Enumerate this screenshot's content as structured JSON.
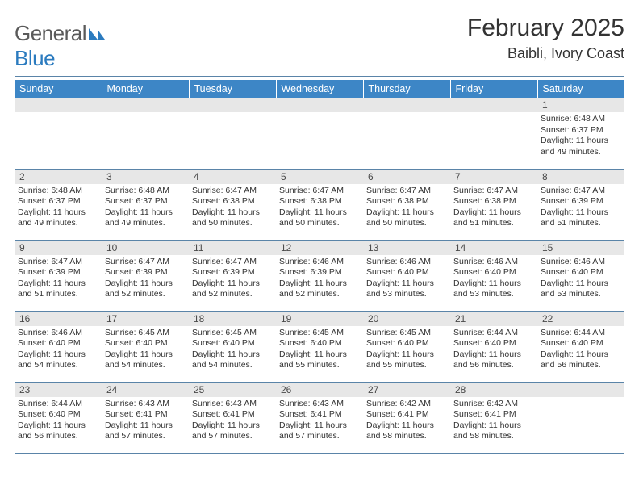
{
  "logo": {
    "prefix": "General",
    "suffix": "Blue"
  },
  "title": "February 2025",
  "location": "Baibli, Ivory Coast",
  "colors": {
    "header_bg": "#3d86c6",
    "header_fg": "#ffffff",
    "daynum_bg": "#e7e7e7",
    "daynum_fg": "#4a4a4a",
    "rule": "#5a84a8",
    "text": "#333333",
    "logo_gray": "#5a5a5a",
    "logo_blue": "#2b7bbf"
  },
  "day_names": [
    "Sunday",
    "Monday",
    "Tuesday",
    "Wednesday",
    "Thursday",
    "Friday",
    "Saturday"
  ],
  "weeks": [
    [
      null,
      null,
      null,
      null,
      null,
      null,
      {
        "n": "1",
        "sr": "Sunrise: 6:48 AM",
        "ss": "Sunset: 6:37 PM",
        "dl": "Daylight: 11 hours and 49 minutes."
      }
    ],
    [
      {
        "n": "2",
        "sr": "Sunrise: 6:48 AM",
        "ss": "Sunset: 6:37 PM",
        "dl": "Daylight: 11 hours and 49 minutes."
      },
      {
        "n": "3",
        "sr": "Sunrise: 6:48 AM",
        "ss": "Sunset: 6:37 PM",
        "dl": "Daylight: 11 hours and 49 minutes."
      },
      {
        "n": "4",
        "sr": "Sunrise: 6:47 AM",
        "ss": "Sunset: 6:38 PM",
        "dl": "Daylight: 11 hours and 50 minutes."
      },
      {
        "n": "5",
        "sr": "Sunrise: 6:47 AM",
        "ss": "Sunset: 6:38 PM",
        "dl": "Daylight: 11 hours and 50 minutes."
      },
      {
        "n": "6",
        "sr": "Sunrise: 6:47 AM",
        "ss": "Sunset: 6:38 PM",
        "dl": "Daylight: 11 hours and 50 minutes."
      },
      {
        "n": "7",
        "sr": "Sunrise: 6:47 AM",
        "ss": "Sunset: 6:38 PM",
        "dl": "Daylight: 11 hours and 51 minutes."
      },
      {
        "n": "8",
        "sr": "Sunrise: 6:47 AM",
        "ss": "Sunset: 6:39 PM",
        "dl": "Daylight: 11 hours and 51 minutes."
      }
    ],
    [
      {
        "n": "9",
        "sr": "Sunrise: 6:47 AM",
        "ss": "Sunset: 6:39 PM",
        "dl": "Daylight: 11 hours and 51 minutes."
      },
      {
        "n": "10",
        "sr": "Sunrise: 6:47 AM",
        "ss": "Sunset: 6:39 PM",
        "dl": "Daylight: 11 hours and 52 minutes."
      },
      {
        "n": "11",
        "sr": "Sunrise: 6:47 AM",
        "ss": "Sunset: 6:39 PM",
        "dl": "Daylight: 11 hours and 52 minutes."
      },
      {
        "n": "12",
        "sr": "Sunrise: 6:46 AM",
        "ss": "Sunset: 6:39 PM",
        "dl": "Daylight: 11 hours and 52 minutes."
      },
      {
        "n": "13",
        "sr": "Sunrise: 6:46 AM",
        "ss": "Sunset: 6:40 PM",
        "dl": "Daylight: 11 hours and 53 minutes."
      },
      {
        "n": "14",
        "sr": "Sunrise: 6:46 AM",
        "ss": "Sunset: 6:40 PM",
        "dl": "Daylight: 11 hours and 53 minutes."
      },
      {
        "n": "15",
        "sr": "Sunrise: 6:46 AM",
        "ss": "Sunset: 6:40 PM",
        "dl": "Daylight: 11 hours and 53 minutes."
      }
    ],
    [
      {
        "n": "16",
        "sr": "Sunrise: 6:46 AM",
        "ss": "Sunset: 6:40 PM",
        "dl": "Daylight: 11 hours and 54 minutes."
      },
      {
        "n": "17",
        "sr": "Sunrise: 6:45 AM",
        "ss": "Sunset: 6:40 PM",
        "dl": "Daylight: 11 hours and 54 minutes."
      },
      {
        "n": "18",
        "sr": "Sunrise: 6:45 AM",
        "ss": "Sunset: 6:40 PM",
        "dl": "Daylight: 11 hours and 54 minutes."
      },
      {
        "n": "19",
        "sr": "Sunrise: 6:45 AM",
        "ss": "Sunset: 6:40 PM",
        "dl": "Daylight: 11 hours and 55 minutes."
      },
      {
        "n": "20",
        "sr": "Sunrise: 6:45 AM",
        "ss": "Sunset: 6:40 PM",
        "dl": "Daylight: 11 hours and 55 minutes."
      },
      {
        "n": "21",
        "sr": "Sunrise: 6:44 AM",
        "ss": "Sunset: 6:40 PM",
        "dl": "Daylight: 11 hours and 56 minutes."
      },
      {
        "n": "22",
        "sr": "Sunrise: 6:44 AM",
        "ss": "Sunset: 6:40 PM",
        "dl": "Daylight: 11 hours and 56 minutes."
      }
    ],
    [
      {
        "n": "23",
        "sr": "Sunrise: 6:44 AM",
        "ss": "Sunset: 6:40 PM",
        "dl": "Daylight: 11 hours and 56 minutes."
      },
      {
        "n": "24",
        "sr": "Sunrise: 6:43 AM",
        "ss": "Sunset: 6:41 PM",
        "dl": "Daylight: 11 hours and 57 minutes."
      },
      {
        "n": "25",
        "sr": "Sunrise: 6:43 AM",
        "ss": "Sunset: 6:41 PM",
        "dl": "Daylight: 11 hours and 57 minutes."
      },
      {
        "n": "26",
        "sr": "Sunrise: 6:43 AM",
        "ss": "Sunset: 6:41 PM",
        "dl": "Daylight: 11 hours and 57 minutes."
      },
      {
        "n": "27",
        "sr": "Sunrise: 6:42 AM",
        "ss": "Sunset: 6:41 PM",
        "dl": "Daylight: 11 hours and 58 minutes."
      },
      {
        "n": "28",
        "sr": "Sunrise: 6:42 AM",
        "ss": "Sunset: 6:41 PM",
        "dl": "Daylight: 11 hours and 58 minutes."
      },
      null
    ]
  ]
}
